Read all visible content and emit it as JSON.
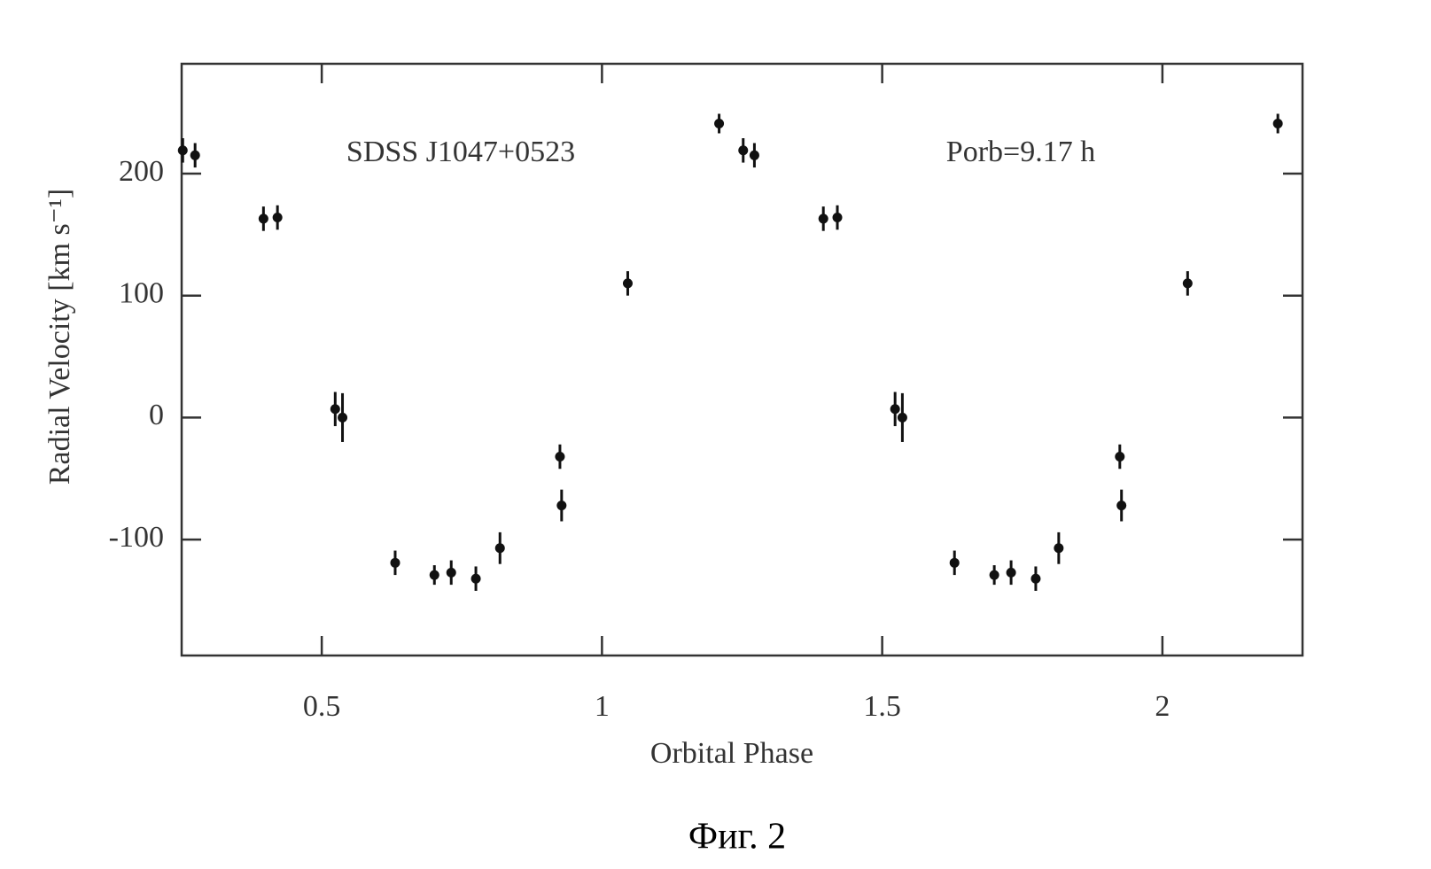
{
  "chart_data": {
    "type": "scatter",
    "annotations": [
      "SDSS J1047+0523",
      "Porb=9.17 h"
    ],
    "x_label": "Orbital Phase",
    "y_label": "Radial Velocity [km s⁻¹]",
    "caption": "Фиг. 2",
    "xlim": [
      0.25,
      2.25
    ],
    "ylim": [
      -195,
      290
    ],
    "xticks": [
      0.5,
      1,
      1.5,
      2
    ],
    "yticks": [
      -100,
      0,
      100,
      200
    ],
    "color": "#111111",
    "x": [
      0.252,
      0.274,
      0.396,
      0.421,
      0.524,
      0.537,
      0.631,
      0.701,
      0.731,
      0.775,
      0.818,
      0.925,
      0.928,
      1.046,
      1.209,
      1.252,
      1.272,
      1.395,
      1.42,
      1.523,
      1.536,
      1.629,
      1.7,
      1.73,
      1.774,
      1.815,
      1.924,
      1.927,
      2.045,
      2.206
    ],
    "values": [
      219,
      215,
      163,
      164,
      7,
      0,
      -119,
      -129,
      -127,
      -132,
      -107,
      -32,
      -72,
      110,
      241,
      219,
      215,
      163,
      164,
      7,
      0,
      -119,
      -129,
      -127,
      -132,
      -107,
      -32,
      -72,
      110,
      241
    ],
    "errors": [
      10,
      10,
      10,
      10,
      14,
      20,
      10,
      8,
      10,
      10,
      13,
      10,
      13,
      10,
      8,
      10,
      10,
      10,
      10,
      14,
      20,
      10,
      8,
      10,
      10,
      13,
      10,
      13,
      10,
      8
    ]
  }
}
